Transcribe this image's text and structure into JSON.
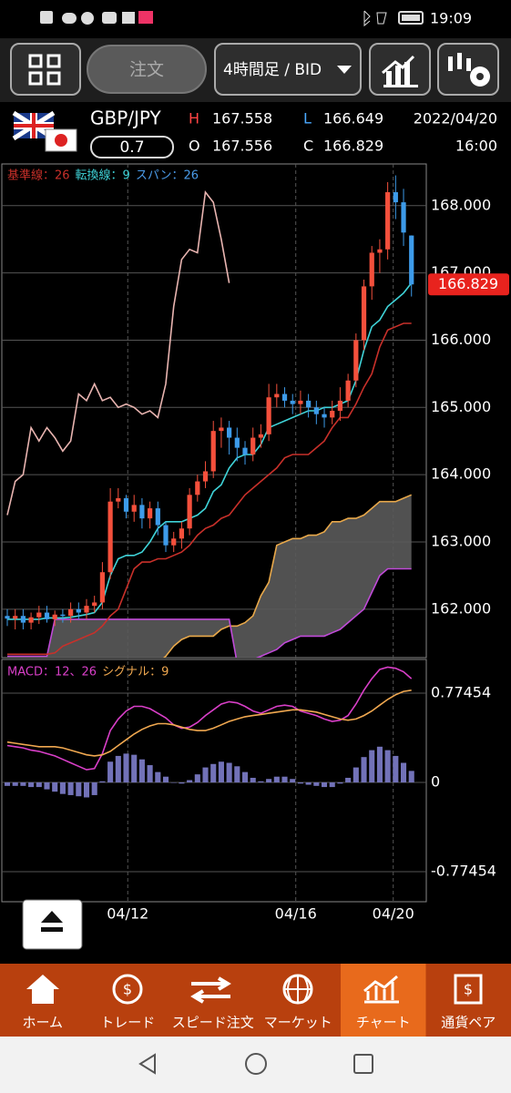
{
  "status_bar": {
    "time": "19:09"
  },
  "toolbar": {
    "order": "注文",
    "timeframe": "4時間足 / BID"
  },
  "header": {
    "pair": "GBP/JPY",
    "spread": "0.7",
    "high_label": "H",
    "high": "167.558",
    "open_label": "O",
    "open": "167.556",
    "low_label": "L",
    "low": "166.649",
    "close_label": "C",
    "close": "166.829",
    "date": "2022/04/20",
    "time": "16:00"
  },
  "chart_data": [
    {
      "type": "candlestick",
      "up_color": "#f4503c",
      "down_color": "#3d9be9",
      "xlim": [
        -0.69,
        52.87
      ],
      "xticks": [
        {
          "value": 15.2,
          "label": "04/12"
        },
        {
          "value": 36.4,
          "label": "04/16"
        },
        {
          "value": 48.7,
          "label": "04/20"
        }
      ],
      "ylim": [
        161.28,
        168.62
      ],
      "yticks": [
        {
          "value": 162,
          "label": "162.000"
        },
        {
          "value": 163,
          "label": "163.000"
        },
        {
          "value": 164,
          "label": "164.000"
        },
        {
          "value": 165,
          "label": "165.000"
        },
        {
          "value": 166,
          "label": "166.000"
        },
        {
          "value": 167,
          "label": "167.000"
        },
        {
          "value": 168,
          "label": "168.000"
        }
      ],
      "grid": true,
      "open": [
        161.9,
        161.86,
        161.9,
        161.8,
        161.88,
        161.95,
        161.85,
        161.92,
        161.9,
        162.0,
        161.95,
        162.05,
        162.1,
        162.55,
        163.6,
        163.65,
        163.45,
        163.55,
        163.35,
        163.5,
        163.25,
        162.95,
        163.05,
        163.2,
        163.7,
        163.9,
        164.05,
        164.65,
        164.7,
        164.55,
        164.4,
        164.3,
        164.55,
        164.6,
        165.15,
        165.2,
        165.1,
        165.05,
        165.1,
        165.0,
        164.9,
        164.85,
        164.95,
        165.1,
        165.4,
        166.0,
        166.8,
        167.3,
        167.35,
        168.2,
        168.05,
        167.556
      ],
      "high": [
        162.0,
        162.0,
        162.0,
        161.95,
        162.05,
        162.05,
        161.98,
        162.0,
        162.1,
        162.1,
        162.15,
        162.2,
        162.7,
        163.8,
        163.8,
        163.7,
        163.7,
        163.65,
        163.6,
        163.6,
        163.3,
        163.15,
        163.3,
        163.8,
        164.0,
        164.2,
        164.8,
        164.85,
        164.8,
        164.7,
        164.5,
        164.7,
        164.75,
        165.35,
        165.35,
        165.3,
        165.2,
        165.25,
        165.2,
        165.1,
        165.0,
        165.1,
        165.3,
        165.5,
        166.1,
        166.9,
        167.4,
        167.5,
        168.35,
        168.45,
        168.25,
        167.558
      ],
      "low": [
        161.75,
        161.7,
        161.7,
        161.7,
        161.78,
        161.8,
        161.75,
        161.8,
        161.8,
        161.85,
        161.85,
        161.95,
        162.0,
        162.45,
        163.5,
        163.35,
        163.3,
        163.2,
        163.2,
        163.1,
        162.85,
        162.85,
        162.9,
        163.1,
        163.6,
        163.8,
        163.95,
        164.4,
        164.3,
        164.2,
        164.15,
        164.2,
        164.4,
        164.5,
        165.0,
        165.0,
        164.9,
        164.9,
        164.85,
        164.75,
        164.7,
        164.75,
        164.8,
        165.0,
        165.3,
        165.85,
        166.6,
        167.0,
        167.2,
        167.8,
        167.4,
        166.649
      ],
      "close": [
        161.86,
        161.9,
        161.8,
        161.88,
        161.95,
        161.85,
        161.92,
        161.9,
        162.0,
        161.95,
        162.05,
        162.1,
        162.55,
        163.6,
        163.65,
        163.45,
        163.55,
        163.35,
        163.5,
        163.25,
        162.95,
        163.05,
        163.2,
        163.7,
        163.9,
        164.05,
        164.65,
        164.7,
        164.55,
        164.4,
        164.3,
        164.55,
        164.6,
        165.15,
        165.2,
        165.1,
        165.05,
        165.1,
        165.0,
        164.9,
        164.85,
        164.95,
        165.1,
        165.4,
        166.0,
        166.8,
        167.3,
        167.35,
        168.2,
        168.05,
        167.6,
        166.829
      ],
      "price_color": "#e8231e",
      "series": [
        {
          "name": "基準線：26",
          "color": "#c8302a",
          "values": [
            161.33,
            161.33,
            161.33,
            161.33,
            161.33,
            161.33,
            161.35,
            161.45,
            161.5,
            161.55,
            161.6,
            161.65,
            161.75,
            161.9,
            162.0,
            162.3,
            162.6,
            162.7,
            162.7,
            162.75,
            162.75,
            162.8,
            162.85,
            162.95,
            163.1,
            163.2,
            163.25,
            163.35,
            163.4,
            163.55,
            163.7,
            163.8,
            163.9,
            164.0,
            164.1,
            164.25,
            164.3,
            164.3,
            164.3,
            164.4,
            164.5,
            164.7,
            164.85,
            164.85,
            165.05,
            165.3,
            165.5,
            165.9,
            166.15,
            166.2,
            166.25,
            166.25
          ]
        },
        {
          "name": "転換線：9",
          "color": "#3fd3d8",
          "values": [
            161.85,
            161.85,
            161.85,
            161.85,
            161.85,
            161.87,
            161.87,
            161.87,
            161.88,
            161.9,
            161.92,
            161.95,
            162.1,
            162.5,
            162.75,
            162.8,
            162.8,
            162.85,
            163.0,
            163.2,
            163.3,
            163.3,
            163.3,
            163.35,
            163.4,
            163.5,
            163.75,
            163.85,
            164.1,
            164.25,
            164.3,
            164.3,
            164.45,
            164.7,
            164.75,
            164.8,
            164.85,
            164.9,
            164.95,
            164.95,
            165.0,
            165.0,
            165.05,
            165.1,
            165.4,
            165.85,
            166.2,
            166.3,
            166.5,
            166.6,
            166.7,
            166.85
          ]
        },
        {
          "name": "スパン：26",
          "color": "#4a9be8",
          "cloud_color": "#5a5a5a",
          "span_a": {
            "color": "#e8a84a",
            "values": [
              161.1,
              161.1,
              161.1,
              161.1,
              161.1,
              161.1,
              161.1,
              161.1,
              161.1,
              161.1,
              161.1,
              161.1,
              161.1,
              161.1,
              161.1,
              161.1,
              161.1,
              161.1,
              161.1,
              161.2,
              161.3,
              161.45,
              161.55,
              161.6,
              161.6,
              161.6,
              161.6,
              161.7,
              161.75,
              161.75,
              161.8,
              161.9,
              162.2,
              162.4,
              162.95,
              163.0,
              163.05,
              163.05,
              163.1,
              163.1,
              163.15,
              163.3,
              163.3,
              163.35,
              163.35,
              163.4,
              163.5,
              163.6,
              163.6,
              163.6,
              163.65,
              163.7
            ]
          },
          "span_b": {
            "color": "#c04ad8",
            "values": [
              161.3,
              161.3,
              161.3,
              161.3,
              161.3,
              161.3,
              161.85,
              161.85,
              161.85,
              161.85,
              161.85,
              161.85,
              161.85,
              161.85,
              161.85,
              161.85,
              161.85,
              161.85,
              161.85,
              161.85,
              161.85,
              161.85,
              161.85,
              161.85,
              161.85,
              161.85,
              161.85,
              161.85,
              161.85,
              161.2,
              161.2,
              161.25,
              161.3,
              161.35,
              161.4,
              161.5,
              161.55,
              161.6,
              161.6,
              161.6,
              161.6,
              161.65,
              161.7,
              161.8,
              161.9,
              162.0,
              162.25,
              162.5,
              162.6,
              162.6,
              162.6,
              162.6
            ]
          },
          "lagging": {
            "color": "#e8b4b0",
            "values": [
              163.4,
              163.9,
              164.0,
              164.7,
              164.5,
              164.7,
              164.55,
              164.35,
              164.5,
              165.2,
              165.1,
              165.35,
              165.1,
              165.15,
              165.0,
              165.05,
              165.0,
              164.9,
              164.95,
              164.85,
              165.35,
              166.5,
              167.2,
              167.35,
              167.3,
              168.2,
              168.05,
              167.5,
              166.85,
              null,
              null,
              null,
              null,
              null,
              null,
              null,
              null,
              null,
              null,
              null,
              null,
              null,
              null,
              null,
              null,
              null,
              null,
              null,
              null,
              null,
              null,
              null
            ]
          }
        }
      ]
    },
    {
      "type": "macd",
      "xlim": [
        -0.69,
        52.87
      ],
      "ylim": [
        -1.035,
        1.067
      ],
      "yticks": [
        0.77454,
        0,
        -0.77454
      ],
      "grid": true,
      "series": [
        {
          "name": "MACD：12、26",
          "color": "#d93fc8",
          "values": [
            0.32,
            0.31,
            0.3,
            0.28,
            0.27,
            0.25,
            0.23,
            0.2,
            0.17,
            0.14,
            0.11,
            0.12,
            0.25,
            0.45,
            0.55,
            0.62,
            0.66,
            0.66,
            0.64,
            0.6,
            0.56,
            0.5,
            0.47,
            0.48,
            0.52,
            0.58,
            0.63,
            0.68,
            0.7,
            0.69,
            0.66,
            0.62,
            0.6,
            0.63,
            0.66,
            0.67,
            0.66,
            0.62,
            0.6,
            0.58,
            0.55,
            0.53,
            0.54,
            0.58,
            0.68,
            0.8,
            0.9,
            0.98,
            1.0,
            0.99,
            0.96,
            0.9
          ]
        },
        {
          "name": "シグナル：9",
          "color": "#f0a850",
          "values": [
            0.35,
            0.34,
            0.33,
            0.32,
            0.31,
            0.31,
            0.31,
            0.3,
            0.28,
            0.26,
            0.24,
            0.23,
            0.24,
            0.27,
            0.32,
            0.37,
            0.42,
            0.46,
            0.49,
            0.51,
            0.51,
            0.5,
            0.48,
            0.46,
            0.45,
            0.45,
            0.47,
            0.5,
            0.53,
            0.55,
            0.57,
            0.58,
            0.59,
            0.6,
            0.61,
            0.62,
            0.63,
            0.63,
            0.62,
            0.61,
            0.59,
            0.57,
            0.55,
            0.54,
            0.55,
            0.58,
            0.62,
            0.67,
            0.72,
            0.76,
            0.79,
            0.8
          ]
        }
      ],
      "histogram": {
        "color": "#7272b8",
        "values": [
          -0.03,
          -0.03,
          -0.03,
          -0.04,
          -0.04,
          -0.06,
          -0.08,
          -0.1,
          -0.11,
          -0.12,
          -0.13,
          -0.11,
          0.01,
          0.18,
          0.23,
          0.25,
          0.24,
          0.2,
          0.15,
          0.09,
          0.05,
          0.0,
          -0.01,
          0.02,
          0.07,
          0.13,
          0.16,
          0.18,
          0.17,
          0.14,
          0.09,
          0.04,
          0.01,
          0.03,
          0.05,
          0.05,
          0.03,
          -0.01,
          -0.02,
          -0.03,
          -0.04,
          -0.04,
          -0.01,
          0.04,
          0.13,
          0.22,
          0.28,
          0.31,
          0.28,
          0.23,
          0.17,
          0.1
        ]
      }
    }
  ],
  "nav": {
    "items": [
      "ホーム",
      "トレード",
      "スピード注文",
      "マーケット",
      "チャート",
      "通貨ペア"
    ]
  }
}
